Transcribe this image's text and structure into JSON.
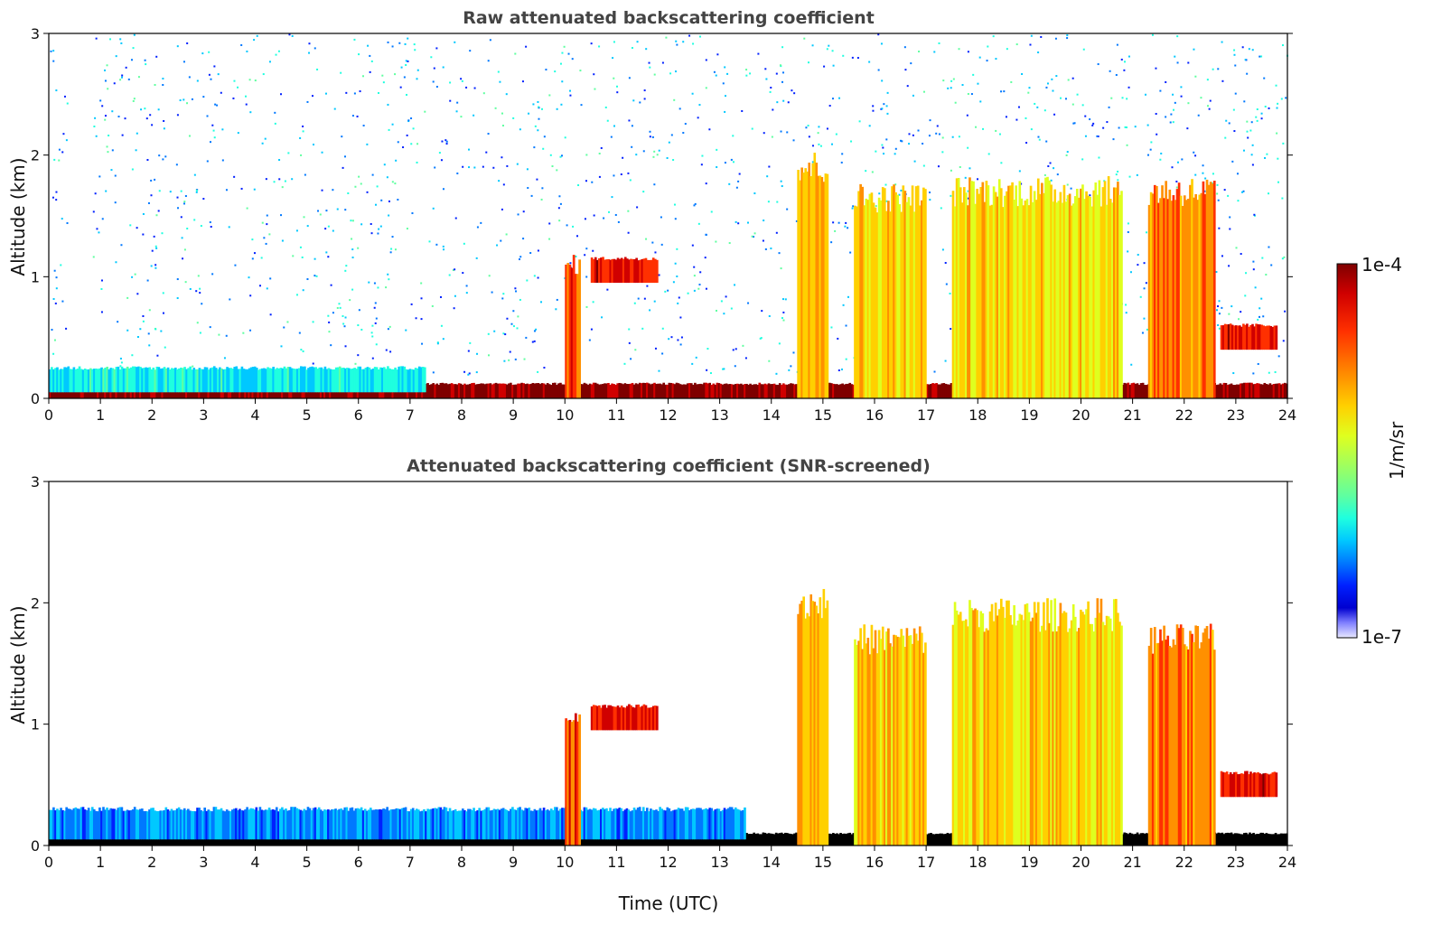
{
  "chart_data": [
    {
      "type": "heatmap",
      "title": "Raw attenuated backscattering coefficient",
      "xlabel": "",
      "ylabel": "Altitude (km)",
      "xlim": [
        0,
        24
      ],
      "ylim": [
        0,
        3
      ],
      "xticks": [
        "0",
        "1",
        "2",
        "3",
        "4",
        "5",
        "6",
        "7",
        "8",
        "9",
        "10",
        "11",
        "12",
        "13",
        "14",
        "15",
        "16",
        "17",
        "18",
        "19",
        "20",
        "21",
        "22",
        "23",
        "24"
      ],
      "yticks": [
        "0",
        "1",
        "2",
        "3"
      ],
      "grid": false,
      "features": [
        {
          "kind": "surface_layer",
          "x": [
            0,
            24
          ],
          "y": [
            0,
            0.12
          ],
          "level": 1.0
        },
        {
          "kind": "boundary_layer",
          "x": [
            0,
            7.3
          ],
          "y": [
            0.05,
            0.25
          ],
          "level": 0.4
        },
        {
          "kind": "cloud",
          "x": [
            10.0,
            10.3
          ],
          "y": [
            0,
            1.1
          ],
          "level": 0.85
        },
        {
          "kind": "cloud_top",
          "x": [
            10.5,
            11.8
          ],
          "y": [
            0.95,
            1.15
          ],
          "level": 0.9
        },
        {
          "kind": "cloud",
          "x": [
            14.5,
            15.1
          ],
          "y": [
            0,
            1.9
          ],
          "level": 0.75
        },
        {
          "kind": "cloud",
          "x": [
            15.6,
            17.0
          ],
          "y": [
            0,
            1.65
          ],
          "level": 0.72
        },
        {
          "kind": "cloud",
          "x": [
            17.5,
            20.8
          ],
          "y": [
            0,
            1.7
          ],
          "level": 0.7
        },
        {
          "kind": "cloud",
          "x": [
            21.3,
            22.6
          ],
          "y": [
            0,
            1.7
          ],
          "level": 0.8
        },
        {
          "kind": "cloud_top",
          "x": [
            22.7,
            23.8
          ],
          "y": [
            0.4,
            0.6
          ],
          "level": 0.9
        }
      ]
    },
    {
      "type": "heatmap",
      "title": "Attenuated backscattering coefficient (SNR-screened)",
      "xlabel": "Time (UTC)",
      "ylabel": "Altitude (km)",
      "xlim": [
        0,
        24
      ],
      "ylim": [
        0,
        3
      ],
      "xticks": [
        "0",
        "1",
        "2",
        "3",
        "4",
        "5",
        "6",
        "7",
        "8",
        "9",
        "10",
        "11",
        "12",
        "13",
        "14",
        "15",
        "16",
        "17",
        "18",
        "19",
        "20",
        "21",
        "22",
        "23",
        "24"
      ],
      "yticks": [
        "0",
        "1",
        "2",
        "3"
      ],
      "grid": false,
      "features": [
        {
          "kind": "surface_layer",
          "x": [
            0,
            24
          ],
          "y": [
            0,
            0.1
          ],
          "level": 1.0
        },
        {
          "kind": "boundary_layer",
          "x": [
            0,
            13.5
          ],
          "y": [
            0.05,
            0.3
          ],
          "level": 0.3
        },
        {
          "kind": "cloud",
          "x": [
            10.0,
            10.3
          ],
          "y": [
            0,
            1.1
          ],
          "level": 0.85
        },
        {
          "kind": "cloud_top",
          "x": [
            10.5,
            11.8
          ],
          "y": [
            0.95,
            1.15
          ],
          "level": 0.9
        },
        {
          "kind": "cloud",
          "x": [
            14.5,
            15.1
          ],
          "y": [
            0,
            2.0
          ],
          "level": 0.75
        },
        {
          "kind": "cloud",
          "x": [
            15.6,
            17.0
          ],
          "y": [
            0,
            1.7
          ],
          "level": 0.72
        },
        {
          "kind": "cloud",
          "x": [
            17.5,
            20.8
          ],
          "y": [
            0,
            1.9
          ],
          "level": 0.7
        },
        {
          "kind": "cloud",
          "x": [
            21.3,
            22.6
          ],
          "y": [
            0,
            1.7
          ],
          "level": 0.8
        },
        {
          "kind": "cloud_top",
          "x": [
            22.7,
            23.8
          ],
          "y": [
            0.4,
            0.6
          ],
          "level": 0.9
        }
      ]
    }
  ],
  "colorbar": {
    "label": "1/m/sr",
    "max_label": "1e-4",
    "min_label": "1e-7",
    "colors": [
      "#7f0000",
      "#d00000",
      "#ff3000",
      "#ff9000",
      "#ffd000",
      "#dfff1f",
      "#9fff5f",
      "#5fffa0",
      "#1fffdf",
      "#00c8ff",
      "#0078ff",
      "#0020ff",
      "#0000d0",
      "#8080ff",
      "#e8e8ff"
    ]
  }
}
